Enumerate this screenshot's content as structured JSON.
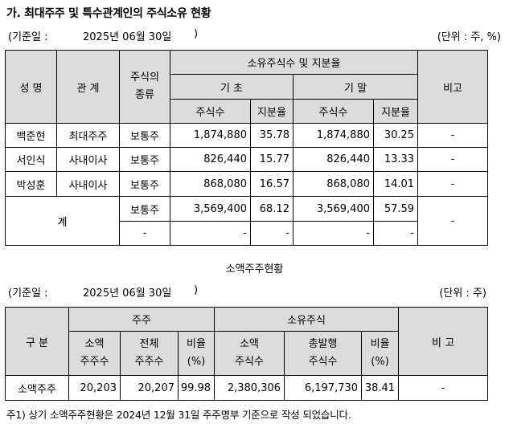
{
  "title": "가. 최대주주 및 특수관계인의 주식소유 현황",
  "t1": {
    "base_label": "(기준일 :",
    "base_date": "2025년 06월 30일",
    "base_close": ")",
    "unit": "(단위 : 주, %)",
    "headers": {
      "name": "성 명",
      "relation": "관 계",
      "stock_type": "주식의\n종류",
      "holdings": "소유주식수 및 지분율",
      "begin": "기 초",
      "end": "기 말",
      "shares": "주식수",
      "ratio": "지분율",
      "remark": "비고"
    },
    "rows": [
      {
        "name": "백준현",
        "relation": "최대주주",
        "type": "보통주",
        "b_shares": "1,874,880",
        "b_ratio": "35.78",
        "e_shares": "1,874,880",
        "e_ratio": "30.25",
        "remark": "-"
      },
      {
        "name": "서인식",
        "relation": "사내이사",
        "type": "보통주",
        "b_shares": "826,440",
        "b_ratio": "15.77",
        "e_shares": "826,440",
        "e_ratio": "13.33",
        "remark": "-"
      },
      {
        "name": "박성훈",
        "relation": "사내이사",
        "type": "보통주",
        "b_shares": "868,080",
        "b_ratio": "16.57",
        "e_shares": "868,080",
        "e_ratio": "14.01",
        "remark": "-"
      }
    ],
    "total": {
      "label": "계",
      "row1": {
        "type": "보통주",
        "b_shares": "3,569,400",
        "b_ratio": "68.12",
        "e_shares": "3,569,400",
        "e_ratio": "57.59",
        "remark": "-"
      },
      "row2": {
        "type": "-",
        "b_shares": "-",
        "b_ratio": "-",
        "e_shares": "-",
        "e_ratio": "-"
      }
    }
  },
  "t2": {
    "title": "소액주주현황",
    "base_label": "(기준일 :",
    "base_date": "2025년 06월 30일",
    "base_close": ")",
    "unit": "(단위 : 주)",
    "headers": {
      "category": "구 분",
      "holders": "주주",
      "shares": "소유주식",
      "remark": "비 고",
      "minor_holders": "소액\n주주수",
      "total_holders": "전체\n주주수",
      "ratio": "비율\n(%)",
      "minor_shares": "소액\n주식수",
      "total_issued": "총발행\n주식수"
    },
    "row": {
      "category": "소액주주",
      "minor_holders": "20,203",
      "total_holders": "20,207",
      "ratio1": "99.98",
      "minor_shares": "2,380,306",
      "total_issued": "6,197,730",
      "ratio2": "38.41",
      "remark": "-"
    }
  },
  "note": "주1) 상기 소액주주현황은 2024년 12월 31일 주주명부 기준으로 작성 되었습니다."
}
